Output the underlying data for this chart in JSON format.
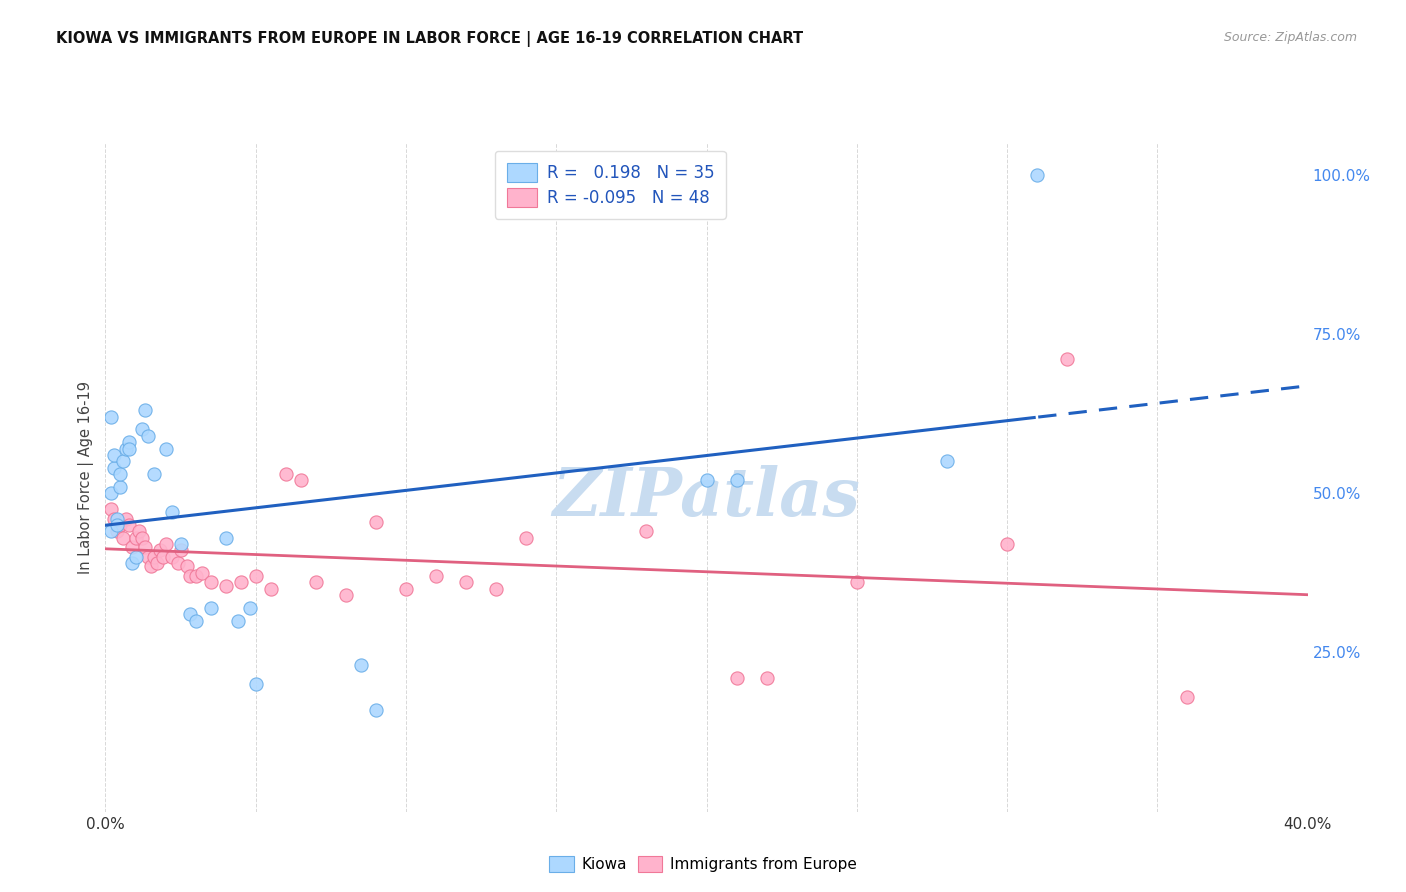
{
  "title": "KIOWA VS IMMIGRANTS FROM EUROPE IN LABOR FORCE | AGE 16-19 CORRELATION CHART",
  "source": "Source: ZipAtlas.com",
  "ylabel": "In Labor Force | Age 16-19",
  "xlim": [
    0.0,
    0.4
  ],
  "ylim": [
    0.0,
    1.05
  ],
  "kiowa_R": 0.198,
  "kiowa_N": 35,
  "europe_R": -0.095,
  "europe_N": 48,
  "kiowa_color": "#ADD8FF",
  "kiowa_edge": "#6AAEE8",
  "europe_color": "#FFB3CC",
  "europe_edge": "#F07898",
  "line_kiowa_color": "#2060C0",
  "line_europe_color": "#E06080",
  "watermark_color": "#C8DCF0",
  "background_color": "#FFFFFF",
  "grid_color": "#D8D8D8",
  "right_tick_color": "#4488EE",
  "legend_text_color": "#2255BB",
  "kiowa_x": [
    0.002,
    0.002,
    0.003,
    0.003,
    0.004,
    0.004,
    0.005,
    0.005,
    0.006,
    0.007,
    0.008,
    0.008,
    0.009,
    0.01,
    0.012,
    0.013,
    0.014,
    0.016,
    0.02,
    0.022,
    0.025,
    0.028,
    0.03,
    0.035,
    0.04,
    0.044,
    0.048,
    0.05,
    0.085,
    0.09,
    0.2,
    0.21,
    0.28,
    0.31,
    0.002
  ],
  "kiowa_y": [
    0.5,
    0.44,
    0.54,
    0.56,
    0.46,
    0.45,
    0.51,
    0.53,
    0.55,
    0.57,
    0.58,
    0.57,
    0.39,
    0.4,
    0.6,
    0.63,
    0.59,
    0.53,
    0.57,
    0.47,
    0.42,
    0.31,
    0.3,
    0.32,
    0.43,
    0.3,
    0.32,
    0.2,
    0.23,
    0.16,
    0.52,
    0.52,
    0.55,
    1.0,
    0.62
  ],
  "europe_x": [
    0.002,
    0.003,
    0.004,
    0.005,
    0.006,
    0.007,
    0.008,
    0.009,
    0.01,
    0.011,
    0.012,
    0.013,
    0.014,
    0.015,
    0.016,
    0.017,
    0.018,
    0.019,
    0.02,
    0.022,
    0.024,
    0.025,
    0.027,
    0.028,
    0.03,
    0.032,
    0.035,
    0.04,
    0.045,
    0.05,
    0.055,
    0.06,
    0.065,
    0.07,
    0.08,
    0.09,
    0.1,
    0.11,
    0.12,
    0.13,
    0.14,
    0.18,
    0.21,
    0.22,
    0.25,
    0.3,
    0.32,
    0.36
  ],
  "europe_y": [
    0.475,
    0.46,
    0.44,
    0.45,
    0.43,
    0.46,
    0.45,
    0.415,
    0.43,
    0.44,
    0.43,
    0.415,
    0.4,
    0.385,
    0.4,
    0.39,
    0.41,
    0.4,
    0.42,
    0.4,
    0.39,
    0.41,
    0.385,
    0.37,
    0.37,
    0.375,
    0.36,
    0.355,
    0.36,
    0.37,
    0.35,
    0.53,
    0.52,
    0.36,
    0.34,
    0.455,
    0.35,
    0.37,
    0.36,
    0.35,
    0.43,
    0.44,
    0.21,
    0.21,
    0.36,
    0.42,
    0.71,
    0.18
  ]
}
